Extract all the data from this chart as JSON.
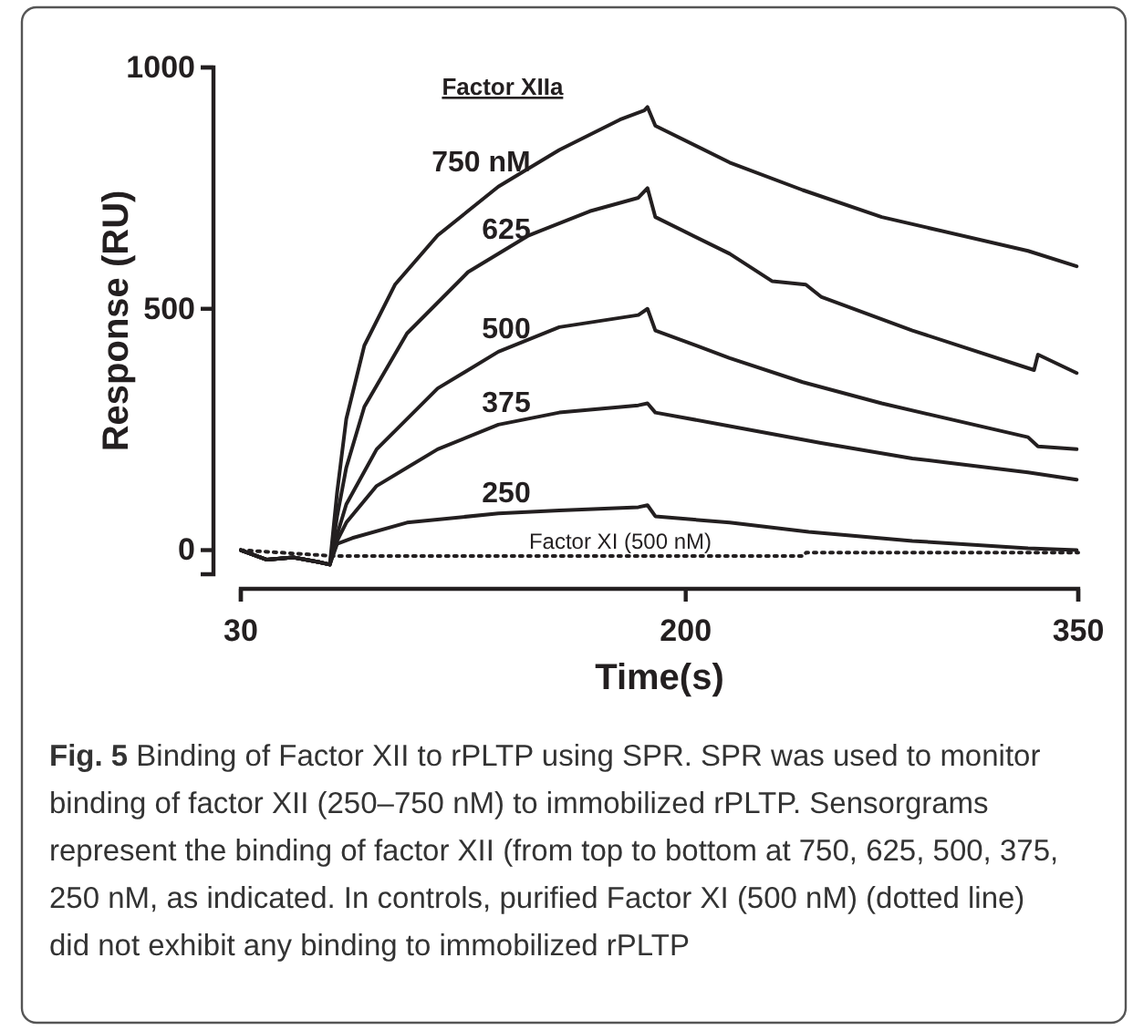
{
  "chart_data": {
    "type": "line",
    "xlabel": "Time(s)",
    "ylabel": "Response (RU)",
    "legend_title": "Factor XIIa",
    "xlim": [
      30,
      350
    ],
    "xticks": [
      30,
      200,
      350
    ],
    "ylim": [
      -50,
      1000
    ],
    "yticks": [
      0,
      500,
      1000
    ],
    "annotations": [
      "Fig. 5 Binding of Factor XII to rPLTP using SPR. SPR was used to monitor binding of factor XII (250–750 nM) to immobilized rPLTP. Sensorgrams represent the binding of factor XII (from top to bottom at 750, 625, 500, 375, 250 nM, as indicated. In controls, purified Factor XI (500 nM) (dotted line) did not exhibit any binding to immobilized rPLTP"
    ],
    "series": [
      {
        "name": "750 nM",
        "color": "#231f20",
        "x": [
          30,
          40,
          50,
          60,
          64,
          66.8,
          70.3,
          77.2,
          88.9,
          105.2,
          128.4,
          151.7,
          174.9,
          184.2,
          185.4,
          188.4,
          216.8,
          244.7,
          274.9,
          330.8,
          349.4
        ],
        "values": [
          0,
          -20,
          -15,
          -25,
          -30,
          120,
          272,
          424,
          550,
          652,
          753,
          829,
          892,
          911,
          918,
          879,
          803,
          746,
          690,
          620,
          588
        ]
      },
      {
        "name": "625",
        "color": "#231f20",
        "x": [
          30,
          40,
          50,
          60,
          64,
          66.8,
          70.3,
          77.2,
          93.5,
          116.8,
          140,
          163.3,
          181.9,
          185.4,
          188.4,
          216.8,
          233.1,
          245.9,
          251.7,
          286.6,
          333.1,
          334.6,
          349.4
        ],
        "values": [
          0,
          -20,
          -15,
          -25,
          -30,
          70,
          171,
          297,
          449,
          576,
          652,
          702,
          730,
          750,
          690,
          614,
          557,
          550,
          525,
          455,
          373,
          405,
          367
        ]
      },
      {
        "name": "500",
        "color": "#231f20",
        "x": [
          30,
          40,
          50,
          60,
          64,
          66.8,
          70.3,
          81.9,
          105.2,
          128.4,
          151.7,
          181.9,
          185.4,
          188.4,
          216.8,
          244.7,
          274.9,
          330.8,
          334.6,
          349.4
        ],
        "values": [
          0,
          -20,
          -15,
          -25,
          -30,
          32,
          95,
          209,
          335,
          411,
          462,
          487,
          500,
          455,
          398,
          348,
          304,
          234,
          215,
          209
        ]
      },
      {
        "name": "375",
        "color": "#231f20",
        "x": [
          30,
          40,
          50,
          60,
          64,
          66.8,
          70.3,
          81.9,
          105.2,
          128.4,
          151.7,
          181.9,
          185.4,
          188.4,
          216.8,
          251.7,
          286.6,
          330.8,
          349.4
        ],
        "values": [
          0,
          -20,
          -15,
          -25,
          -30,
          19,
          57,
          133,
          209,
          260,
          285,
          300,
          304,
          285,
          257,
          222,
          190,
          161,
          146
        ]
      },
      {
        "name": "250",
        "color": "#231f20",
        "x": [
          30,
          40,
          50,
          60,
          64,
          66.8,
          72.6,
          93.5,
          128.4,
          151.7,
          181.9,
          185.4,
          188.4,
          216.8,
          247,
          286.6,
          330.8,
          349.4
        ],
        "values": [
          0,
          -20,
          -15,
          -25,
          -30,
          13,
          25,
          57,
          76,
          82,
          89,
          93,
          70,
          57,
          38,
          19,
          4,
          0
        ]
      },
      {
        "name": "Factor XI (500 nM)",
        "color": "#231f20",
        "line_style": "dotted",
        "x": [
          30,
          65,
          245,
          246,
          350
        ],
        "values": [
          0,
          -12,
          -12,
          -5,
          -5
        ]
      }
    ]
  }
}
